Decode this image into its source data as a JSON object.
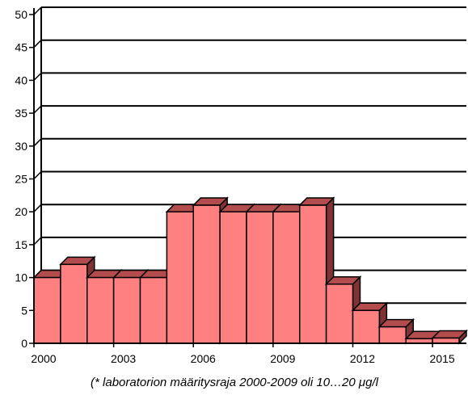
{
  "chart_data": {
    "type": "bar",
    "title": "",
    "xlabel": "",
    "ylabel": "",
    "ylim": [
      0,
      50
    ],
    "yticks": [
      0,
      5,
      10,
      15,
      20,
      25,
      30,
      35,
      40,
      45,
      50
    ],
    "grid": true,
    "legend": "none",
    "categories": [
      "2000",
      "2001",
      "2002",
      "2003",
      "2004",
      "2005",
      "2006",
      "2007",
      "2008",
      "2009",
      "2010",
      "2011",
      "2012",
      "2013",
      "2014",
      "2015"
    ],
    "xtick_labels": [
      "2000",
      "2003",
      "2006",
      "2009",
      "2012",
      "2015"
    ],
    "values": [
      10,
      12,
      10,
      10,
      10,
      20,
      21,
      20,
      20,
      20,
      21,
      9,
      5,
      2.5,
      0.7,
      0.8
    ],
    "colors": {
      "bar_front": "#ff8080",
      "bar_top": "#b34d4d",
      "bar_side": "#803333",
      "grid": "#000000"
    },
    "annotation": "(* laboratorion määritysraja 2000-2009 oli 10…20 μg/l"
  }
}
